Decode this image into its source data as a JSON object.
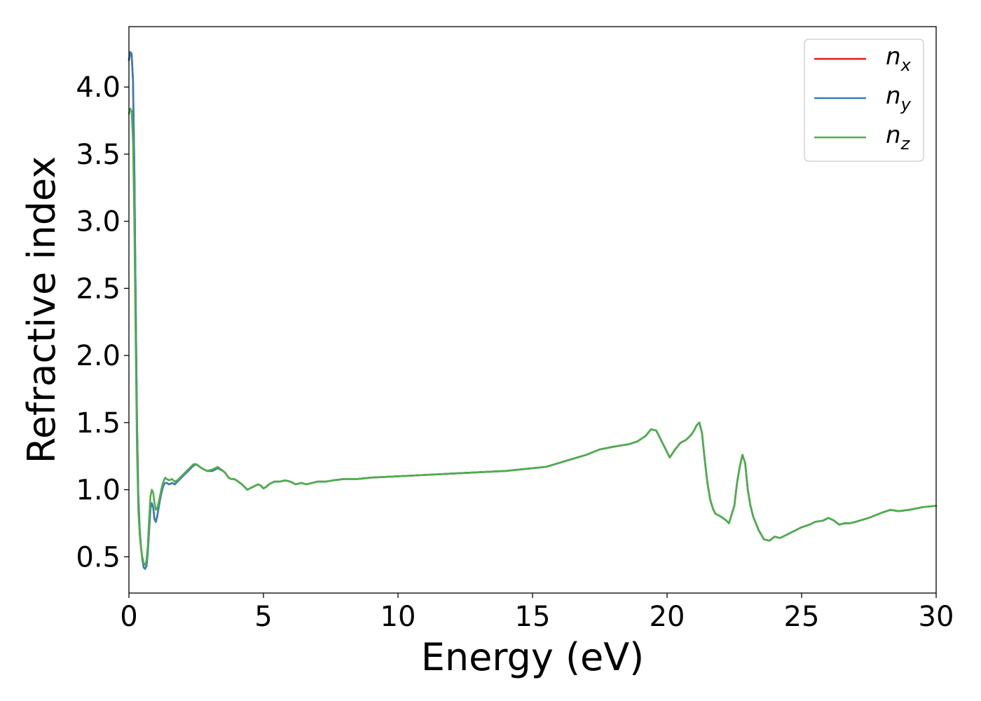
{
  "chart_data": {
    "type": "line",
    "xlabel": "Energy (eV)",
    "ylabel": "Refractive index",
    "xlim": [
      0,
      30
    ],
    "ylim": [
      0.23,
      4.45
    ],
    "x_ticks": [
      0,
      5,
      10,
      15,
      20,
      25,
      30
    ],
    "x_tick_labels": [
      "0",
      "5",
      "10",
      "15",
      "20",
      "25",
      "30"
    ],
    "y_ticks": [
      0.5,
      1.0,
      1.5,
      2.0,
      2.5,
      3.0,
      3.5,
      4.0
    ],
    "y_tick_labels": [
      "0.5",
      "1.0",
      "1.5",
      "2.0",
      "2.5",
      "3.0",
      "3.5",
      "4.0"
    ],
    "grid": false,
    "legend_position": "top-right",
    "series": [
      {
        "name": "n_x",
        "legend_base": "n",
        "legend_sub": "x",
        "color": "#e41a1c",
        "x": [
          0,
          0.05,
          0.1,
          0.15,
          0.2,
          0.25,
          0.3,
          0.35,
          0.4,
          0.45,
          0.5,
          0.55,
          0.6,
          0.65,
          0.7,
          0.75,
          0.8,
          0.85,
          0.9,
          0.95,
          1.0,
          1.05,
          1.1,
          1.15,
          1.2,
          1.25,
          1.3,
          1.35,
          1.4,
          1.5,
          1.6,
          1.7,
          1.8,
          1.9,
          2.0,
          2.1,
          2.2,
          2.3,
          2.4,
          2.5,
          2.7,
          2.9,
          3.1,
          3.3,
          3.5,
          3.6,
          3.7,
          3.8,
          3.9,
          4.0,
          4.2,
          4.4,
          4.6,
          4.8,
          4.9,
          5.0,
          5.1,
          5.2,
          5.3,
          5.4,
          5.6,
          5.8,
          6.0,
          6.2,
          6.4,
          6.6,
          6.8,
          7.0,
          7.3,
          7.6,
          8.0,
          8.5,
          9.0,
          10.0,
          11.0,
          12.0,
          13.0,
          14.0,
          15.0,
          15.5,
          16.0,
          16.5,
          17.0,
          17.5,
          18.0,
          18.3,
          18.6,
          18.9,
          19.2,
          19.4,
          19.6,
          19.8,
          20.0,
          20.1,
          20.3,
          20.5,
          20.7,
          20.9,
          21.0,
          21.1,
          21.2,
          21.3,
          21.4,
          21.5,
          21.6,
          21.7,
          21.8,
          22.0,
          22.2,
          22.3,
          22.5,
          22.6,
          22.7,
          22.8,
          22.9,
          23.0,
          23.1,
          23.2,
          23.4,
          23.6,
          23.8,
          24.0,
          24.2,
          24.5,
          24.8,
          25.0,
          25.3,
          25.5,
          25.8,
          26.0,
          26.2,
          26.4,
          26.6,
          26.8,
          27.0,
          27.5,
          28.0,
          28.3,
          28.6,
          29.0,
          29.5,
          30.0
        ],
        "y": [
          4.2,
          4.26,
          4.25,
          4.05,
          3.4,
          2.4,
          1.5,
          0.95,
          0.7,
          0.57,
          0.48,
          0.42,
          0.41,
          0.43,
          0.53,
          0.7,
          0.86,
          0.9,
          0.87,
          0.78,
          0.76,
          0.8,
          0.86,
          0.92,
          0.97,
          1.01,
          1.04,
          1.05,
          1.05,
          1.04,
          1.05,
          1.04,
          1.06,
          1.08,
          1.1,
          1.12,
          1.14,
          1.16,
          1.18,
          1.19,
          1.16,
          1.14,
          1.14,
          1.16,
          1.14,
          1.12,
          1.09,
          1.08,
          1.08,
          1.07,
          1.04,
          1.0,
          1.02,
          1.04,
          1.03,
          1.01,
          1.02,
          1.04,
          1.05,
          1.06,
          1.06,
          1.07,
          1.06,
          1.04,
          1.05,
          1.04,
          1.05,
          1.06,
          1.06,
          1.07,
          1.08,
          1.08,
          1.09,
          1.1,
          1.11,
          1.12,
          1.13,
          1.14,
          1.16,
          1.17,
          1.2,
          1.23,
          1.26,
          1.3,
          1.32,
          1.33,
          1.34,
          1.36,
          1.4,
          1.45,
          1.44,
          1.36,
          1.28,
          1.24,
          1.3,
          1.35,
          1.37,
          1.41,
          1.44,
          1.48,
          1.5,
          1.42,
          1.22,
          1.05,
          0.93,
          0.86,
          0.82,
          0.8,
          0.77,
          0.75,
          0.88,
          1.05,
          1.17,
          1.26,
          1.2,
          1.0,
          0.88,
          0.8,
          0.7,
          0.63,
          0.62,
          0.65,
          0.64,
          0.67,
          0.7,
          0.72,
          0.74,
          0.76,
          0.77,
          0.79,
          0.77,
          0.74,
          0.75,
          0.75,
          0.76,
          0.79,
          0.83,
          0.85,
          0.84,
          0.85,
          0.87,
          0.88
        ]
      },
      {
        "name": "n_y",
        "legend_base": "n",
        "legend_sub": "y",
        "color": "#377eb8",
        "x": [
          0,
          0.05,
          0.1,
          0.15,
          0.2,
          0.25,
          0.3,
          0.35,
          0.4,
          0.45,
          0.5,
          0.55,
          0.6,
          0.65,
          0.7,
          0.75,
          0.8,
          0.85,
          0.9,
          0.95,
          1.0,
          1.05,
          1.1,
          1.15,
          1.2,
          1.25,
          1.3,
          1.35,
          1.4,
          1.5,
          1.6,
          1.7,
          1.8,
          1.9,
          2.0,
          2.1,
          2.2,
          2.3,
          2.4,
          2.5,
          2.7,
          2.9,
          3.1,
          3.3,
          3.5,
          3.6,
          3.7,
          3.8,
          3.9,
          4.0,
          4.2,
          4.4,
          4.6,
          4.8,
          4.9,
          5.0,
          5.1,
          5.2,
          5.3,
          5.4,
          5.6,
          5.8,
          6.0,
          6.2,
          6.4,
          6.6,
          6.8,
          7.0,
          7.3,
          7.6,
          8.0,
          8.5,
          9.0,
          10.0,
          11.0,
          12.0,
          13.0,
          14.0,
          15.0,
          15.5,
          16.0,
          16.5,
          17.0,
          17.5,
          18.0,
          18.3,
          18.6,
          18.9,
          19.2,
          19.4,
          19.6,
          19.8,
          20.0,
          20.1,
          20.3,
          20.5,
          20.7,
          20.9,
          21.0,
          21.1,
          21.2,
          21.3,
          21.4,
          21.5,
          21.6,
          21.7,
          21.8,
          22.0,
          22.2,
          22.3,
          22.5,
          22.6,
          22.7,
          22.8,
          22.9,
          23.0,
          23.1,
          23.2,
          23.4,
          23.6,
          23.8,
          24.0,
          24.2,
          24.5,
          24.8,
          25.0,
          25.3,
          25.5,
          25.8,
          26.0,
          26.2,
          26.4,
          26.6,
          26.8,
          27.0,
          27.5,
          28.0,
          28.3,
          28.6,
          29.0,
          29.5,
          30.0
        ],
        "y": [
          4.2,
          4.26,
          4.25,
          4.05,
          3.4,
          2.4,
          1.5,
          0.95,
          0.7,
          0.57,
          0.48,
          0.42,
          0.41,
          0.43,
          0.53,
          0.7,
          0.86,
          0.9,
          0.87,
          0.78,
          0.76,
          0.8,
          0.86,
          0.92,
          0.97,
          1.01,
          1.04,
          1.05,
          1.05,
          1.04,
          1.05,
          1.04,
          1.06,
          1.08,
          1.1,
          1.12,
          1.14,
          1.16,
          1.18,
          1.19,
          1.16,
          1.14,
          1.14,
          1.16,
          1.14,
          1.12,
          1.09,
          1.08,
          1.08,
          1.07,
          1.04,
          1.0,
          1.02,
          1.04,
          1.03,
          1.01,
          1.02,
          1.04,
          1.05,
          1.06,
          1.06,
          1.07,
          1.06,
          1.04,
          1.05,
          1.04,
          1.05,
          1.06,
          1.06,
          1.07,
          1.08,
          1.08,
          1.09,
          1.1,
          1.11,
          1.12,
          1.13,
          1.14,
          1.16,
          1.17,
          1.2,
          1.23,
          1.26,
          1.3,
          1.32,
          1.33,
          1.34,
          1.36,
          1.4,
          1.45,
          1.44,
          1.36,
          1.28,
          1.24,
          1.3,
          1.35,
          1.37,
          1.41,
          1.44,
          1.48,
          1.5,
          1.42,
          1.22,
          1.05,
          0.93,
          0.86,
          0.82,
          0.8,
          0.77,
          0.75,
          0.88,
          1.05,
          1.17,
          1.26,
          1.2,
          1.0,
          0.88,
          0.8,
          0.7,
          0.63,
          0.62,
          0.65,
          0.64,
          0.67,
          0.7,
          0.72,
          0.74,
          0.76,
          0.77,
          0.79,
          0.77,
          0.74,
          0.75,
          0.75,
          0.76,
          0.79,
          0.83,
          0.85,
          0.84,
          0.85,
          0.87,
          0.88
        ]
      },
      {
        "name": "n_z",
        "legend_base": "n",
        "legend_sub": "z",
        "color": "#4daf4a",
        "x": [
          0,
          0.05,
          0.1,
          0.15,
          0.2,
          0.25,
          0.3,
          0.35,
          0.4,
          0.45,
          0.5,
          0.55,
          0.6,
          0.65,
          0.7,
          0.75,
          0.8,
          0.85,
          0.9,
          0.95,
          1.0,
          1.05,
          1.1,
          1.15,
          1.2,
          1.25,
          1.3,
          1.35,
          1.4,
          1.5,
          1.6,
          1.7,
          1.8,
          1.9,
          2.0,
          2.1,
          2.2,
          2.3,
          2.4,
          2.5,
          2.7,
          2.9,
          3.1,
          3.3,
          3.5,
          3.6,
          3.7,
          3.8,
          3.9,
          4.0,
          4.2,
          4.4,
          4.6,
          4.8,
          4.9,
          5.0,
          5.1,
          5.2,
          5.3,
          5.4,
          5.6,
          5.8,
          6.0,
          6.2,
          6.4,
          6.6,
          6.8,
          7.0,
          7.3,
          7.6,
          8.0,
          8.5,
          9.0,
          10.0,
          11.0,
          12.0,
          13.0,
          14.0,
          15.0,
          15.5,
          16.0,
          16.5,
          17.0,
          17.5,
          18.0,
          18.3,
          18.6,
          18.9,
          19.2,
          19.4,
          19.6,
          19.8,
          20.0,
          20.1,
          20.3,
          20.5,
          20.7,
          20.9,
          21.0,
          21.1,
          21.2,
          21.3,
          21.4,
          21.5,
          21.6,
          21.7,
          21.8,
          22.0,
          22.2,
          22.3,
          22.5,
          22.6,
          22.7,
          22.8,
          22.9,
          23.0,
          23.1,
          23.2,
          23.4,
          23.6,
          23.8,
          24.0,
          24.2,
          24.5,
          24.8,
          25.0,
          25.3,
          25.5,
          25.8,
          26.0,
          26.2,
          26.4,
          26.6,
          26.8,
          27.0,
          27.5,
          28.0,
          28.3,
          28.6,
          29.0,
          29.5,
          30.0
        ],
        "y": [
          3.8,
          3.84,
          3.82,
          3.6,
          3.0,
          2.1,
          1.3,
          0.85,
          0.66,
          0.56,
          0.5,
          0.45,
          0.44,
          0.47,
          0.58,
          0.78,
          0.95,
          1.0,
          0.98,
          0.9,
          0.85,
          0.86,
          0.9,
          0.95,
          1.0,
          1.04,
          1.07,
          1.09,
          1.08,
          1.07,
          1.08,
          1.06,
          1.07,
          1.09,
          1.11,
          1.13,
          1.15,
          1.17,
          1.19,
          1.19,
          1.16,
          1.14,
          1.15,
          1.17,
          1.14,
          1.12,
          1.09,
          1.08,
          1.08,
          1.07,
          1.04,
          1.0,
          1.02,
          1.04,
          1.03,
          1.01,
          1.02,
          1.04,
          1.05,
          1.06,
          1.06,
          1.07,
          1.06,
          1.04,
          1.05,
          1.04,
          1.05,
          1.06,
          1.06,
          1.07,
          1.08,
          1.08,
          1.09,
          1.1,
          1.11,
          1.12,
          1.13,
          1.14,
          1.16,
          1.17,
          1.2,
          1.23,
          1.26,
          1.3,
          1.32,
          1.33,
          1.34,
          1.36,
          1.4,
          1.45,
          1.44,
          1.36,
          1.28,
          1.24,
          1.3,
          1.35,
          1.37,
          1.41,
          1.44,
          1.48,
          1.5,
          1.42,
          1.22,
          1.05,
          0.93,
          0.86,
          0.82,
          0.8,
          0.77,
          0.75,
          0.88,
          1.05,
          1.17,
          1.26,
          1.2,
          1.0,
          0.88,
          0.8,
          0.7,
          0.63,
          0.62,
          0.65,
          0.64,
          0.67,
          0.7,
          0.72,
          0.74,
          0.76,
          0.77,
          0.79,
          0.77,
          0.74,
          0.75,
          0.75,
          0.76,
          0.79,
          0.83,
          0.85,
          0.84,
          0.85,
          0.87,
          0.88
        ]
      }
    ]
  }
}
